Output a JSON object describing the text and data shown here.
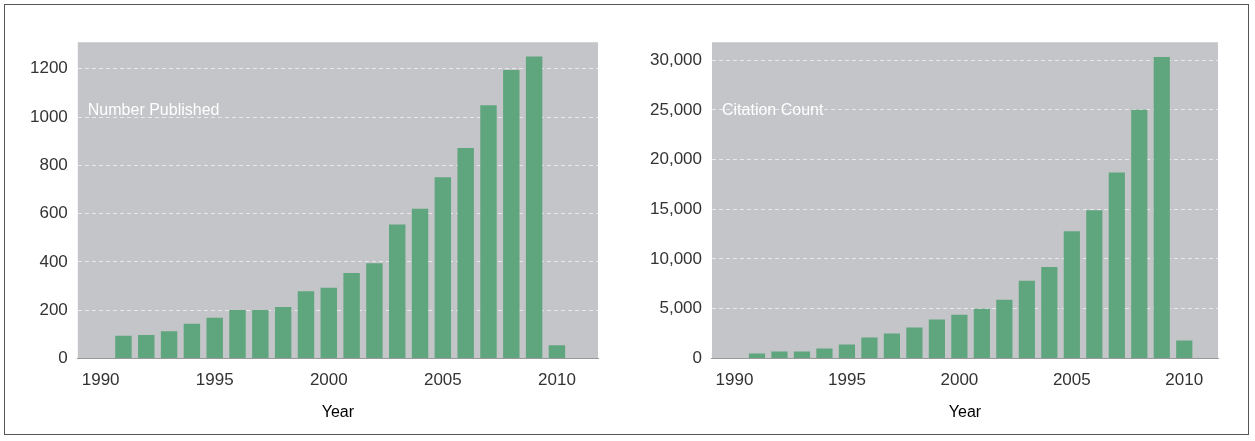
{
  "chart_data": [
    {
      "type": "bar",
      "annotations": [
        "Number Published"
      ],
      "xlabel": "Year",
      "x": [
        1991,
        1992,
        1993,
        1994,
        1995,
        1996,
        1997,
        1998,
        1999,
        2000,
        2001,
        2002,
        2003,
        2004,
        2005,
        2006,
        2007,
        2008,
        2009,
        2010
      ],
      "values": [
        94,
        97,
        112,
        144,
        168,
        201,
        201,
        213,
        278,
        293,
        354,
        394,
        555,
        620,
        751,
        872,
        1049,
        1195,
        1251,
        54
      ],
      "color": "#5fa57e",
      "xlim": [
        1989,
        2011.8
      ],
      "xticks": [
        1990,
        1995,
        2000,
        2005,
        2010
      ],
      "ylim": [
        0,
        1310
      ],
      "yticks": [
        0,
        200,
        400,
        600,
        800,
        1000,
        1200
      ],
      "grid": "y"
    },
    {
      "type": "bar",
      "annotations": [
        "Citation Count"
      ],
      "xlabel": "Year",
      "x": [
        1991,
        1992,
        1993,
        1994,
        1995,
        1996,
        1997,
        1998,
        1999,
        2000,
        2001,
        2002,
        2003,
        2004,
        2005,
        2006,
        2007,
        2008,
        2009,
        2010
      ],
      "values": [
        500,
        700,
        700,
        1000,
        1400,
        2100,
        2500,
        3100,
        3900,
        4400,
        5000,
        5900,
        7800,
        9200,
        12800,
        14900,
        18700,
        25000,
        30300,
        1800
      ],
      "color": "#5fa57e",
      "xlim": [
        1989,
        2011.5
      ],
      "xticks": [
        1990,
        1995,
        2000,
        2005,
        2010
      ],
      "ylim": [
        0,
        31800
      ],
      "yticks": [
        0,
        {
          "value": 5000,
          "label": "5,000"
        },
        {
          "value": 10000,
          "label": "10,000"
        },
        {
          "value": 15000,
          "label": "15,000"
        },
        {
          "value": 20000,
          "label": "20,000"
        },
        {
          "value": 25000,
          "label": "25,000"
        },
        {
          "value": 30000,
          "label": "30,000"
        }
      ],
      "grid": "y"
    }
  ]
}
